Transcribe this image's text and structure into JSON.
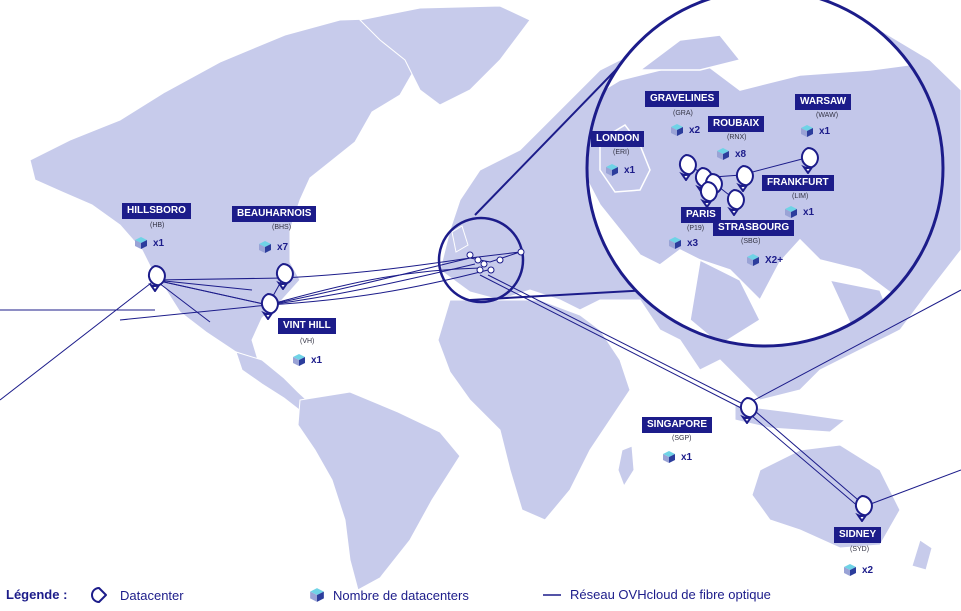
{
  "colors": {
    "land": "#c7cbeb",
    "land_zoom": "#c3c7ea",
    "network": "#1c1c8a",
    "label_bg": "#1c1c8a",
    "label_text": "#ffffff",
    "cube_top": "#6fd3e6",
    "cube_left": "#9aa3d6",
    "cube_right": "#2c3d9c"
  },
  "icons": {
    "datacenter": "datacenter-pin-icon",
    "cube": "datacenter-cube-icon",
    "line": "fiber-line-icon"
  },
  "sites": [
    {
      "id": "hillsboro",
      "name": "HILLSBORO",
      "code": "(HB)",
      "count": "x1"
    },
    {
      "id": "beauharnois",
      "name": "BEAUHARNOIS",
      "code": "(BHS)",
      "count": "x7"
    },
    {
      "id": "vinthill",
      "name": "VINT HILL",
      "code": "(VH)",
      "count": "x1"
    },
    {
      "id": "singapore",
      "name": "SINGAPORE",
      "code": "(SGP)",
      "count": "x1"
    },
    {
      "id": "sidney",
      "name": "SIDNEY",
      "code": "(SYD)",
      "count": "x2"
    },
    {
      "id": "gravelines",
      "name": "GRAVELINES",
      "code": "(GRA)",
      "count": "x2"
    },
    {
      "id": "london",
      "name": "LONDON",
      "code": "(ERI)",
      "count": "x1"
    },
    {
      "id": "roubaix",
      "name": "ROUBAIX",
      "code": "(RNX)",
      "count": "x8"
    },
    {
      "id": "warsaw",
      "name": "WARSAW",
      "code": "(WAW)",
      "count": "x1"
    },
    {
      "id": "frankfurt",
      "name": "FRANKFURT",
      "code": "(LIM)",
      "count": "x1"
    },
    {
      "id": "paris",
      "name": "PARIS",
      "code": "(P19)",
      "count": "x3"
    },
    {
      "id": "strasbourg",
      "name": "STRASBOURG",
      "code": "(SBG)",
      "count": "X2+"
    }
  ],
  "legend": {
    "title": "Légende :",
    "datacenter": "Datacenter",
    "count": "Nombre de datacenters",
    "network": "Réseau OVHcloud de fibre optique"
  }
}
